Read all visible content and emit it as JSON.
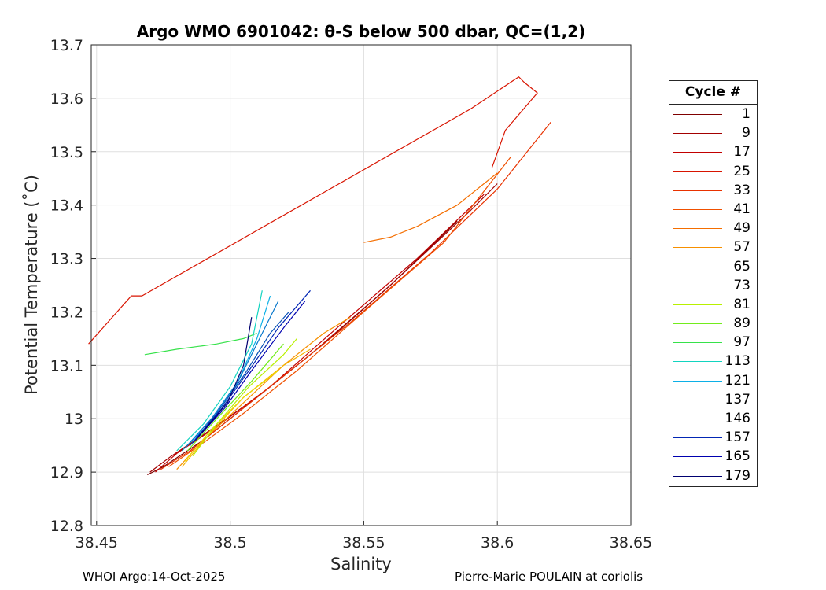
{
  "chart_data": {
    "type": "line",
    "title": "Argo WMO 6901042: θ-S below 500 dbar,  QC=(1,2)",
    "xlabel": "Salinity",
    "ylabel": "Potential Temperature (˚C)",
    "xlim": [
      38.448,
      38.65
    ],
    "ylim": [
      12.8,
      13.7
    ],
    "xticks": [
      "38.45",
      "38.5",
      "38.55",
      "38.6",
      "38.65"
    ],
    "xtick_values": [
      38.45,
      38.5,
      38.55,
      38.6,
      38.65
    ],
    "yticks": [
      "12.8",
      "12.9",
      "13",
      "13.1",
      "13.2",
      "13.3",
      "13.4",
      "13.5",
      "13.6",
      "13.7"
    ],
    "ytick_values": [
      12.8,
      12.9,
      13.0,
      13.1,
      13.2,
      13.3,
      13.4,
      13.5,
      13.6,
      13.7
    ],
    "grid": true,
    "legend_title": "Cycle #",
    "legend_position": "outside-right",
    "series": [
      {
        "name": "1",
        "color": "#7f0000",
        "x": [
          38.469,
          38.475,
          38.49,
          38.51,
          38.535,
          38.56,
          38.585
        ],
        "y": [
          12.895,
          12.91,
          12.96,
          13.04,
          13.14,
          13.25,
          13.37
        ]
      },
      {
        "name": "9",
        "color": "#a30000",
        "x": [
          38.47,
          38.478,
          38.49,
          38.51,
          38.53,
          38.56,
          38.59,
          38.6
        ],
        "y": [
          12.9,
          12.93,
          12.97,
          13.04,
          13.12,
          13.25,
          13.39,
          13.44
        ]
      },
      {
        "name": "17",
        "color": "#c20000",
        "x": [
          38.472,
          38.48,
          38.495,
          38.515,
          38.54,
          38.57,
          38.595
        ],
        "y": [
          12.9,
          12.935,
          12.985,
          13.06,
          13.17,
          13.3,
          13.42
        ]
      },
      {
        "name": "25",
        "color": "#d81400",
        "x": [
          38.447,
          38.463,
          38.467,
          38.59,
          38.608,
          38.61,
          38.615,
          38.603,
          38.598
        ],
        "y": [
          13.14,
          13.23,
          13.23,
          13.58,
          13.64,
          13.63,
          13.61,
          13.54,
          13.47
        ]
      },
      {
        "name": "33",
        "color": "#e83200",
        "x": [
          38.474,
          38.485,
          38.5,
          38.52,
          38.545,
          38.575,
          38.6,
          38.62
        ],
        "y": [
          12.905,
          12.94,
          13.0,
          13.08,
          13.18,
          13.31,
          13.43,
          13.555
        ]
      },
      {
        "name": "41",
        "color": "#f05000",
        "x": [
          38.477,
          38.49,
          38.505,
          38.525,
          38.55,
          38.58,
          38.605
        ],
        "y": [
          12.91,
          12.955,
          13.01,
          13.09,
          13.2,
          13.33,
          13.49
        ]
      },
      {
        "name": "49",
        "color": "#f46e00",
        "x": [
          38.55,
          38.56,
          38.57,
          38.585,
          38.6
        ],
        "y": [
          13.33,
          13.34,
          13.36,
          13.4,
          13.46
        ]
      },
      {
        "name": "57",
        "color": "#f79000",
        "x": [
          38.48,
          38.49,
          38.505,
          38.52,
          38.535,
          38.545
        ],
        "y": [
          12.905,
          12.96,
          13.03,
          13.1,
          13.16,
          13.19
        ]
      },
      {
        "name": "65",
        "color": "#f5b400",
        "x": [
          38.482,
          38.492,
          38.505,
          38.52,
          38.53
        ],
        "y": [
          12.91,
          12.97,
          13.04,
          13.1,
          13.13
        ]
      },
      {
        "name": "73",
        "color": "#eadc00",
        "x": [
          38.483,
          38.493,
          38.505,
          38.518
        ],
        "y": [
          12.92,
          12.98,
          13.04,
          13.09
        ]
      },
      {
        "name": "81",
        "color": "#b8f000",
        "x": [
          38.486,
          38.495,
          38.507,
          38.52,
          38.525
        ],
        "y": [
          12.93,
          12.99,
          13.06,
          13.12,
          13.15
        ]
      },
      {
        "name": "89",
        "color": "#72ec1c",
        "x": [
          38.484,
          38.495,
          38.508,
          38.52
        ],
        "y": [
          12.94,
          13.0,
          13.07,
          13.14
        ]
      },
      {
        "name": "97",
        "color": "#36e24a",
        "x": [
          38.468,
          38.48,
          38.495,
          38.505,
          38.51
        ],
        "y": [
          13.12,
          13.13,
          13.14,
          13.15,
          13.16
        ]
      },
      {
        "name": "113",
        "color": "#12d4c0",
        "x": [
          38.48,
          38.49,
          38.5,
          38.508,
          38.512
        ],
        "y": [
          12.94,
          12.99,
          13.06,
          13.14,
          13.24
        ]
      },
      {
        "name": "121",
        "color": "#0cb0e6",
        "x": [
          38.482,
          38.492,
          38.502,
          38.51,
          38.515
        ],
        "y": [
          12.94,
          12.99,
          13.06,
          13.15,
          13.23
        ]
      },
      {
        "name": "137",
        "color": "#0878cc",
        "x": [
          38.483,
          38.493,
          38.503,
          38.512,
          38.518
        ],
        "y": [
          12.945,
          13.0,
          13.07,
          13.16,
          13.22
        ]
      },
      {
        "name": "146",
        "color": "#0650b6",
        "x": [
          38.485,
          38.495,
          38.505,
          38.515,
          38.522
        ],
        "y": [
          12.95,
          13.01,
          13.08,
          13.16,
          13.2
        ]
      },
      {
        "name": "157",
        "color": "#0226b4",
        "x": [
          38.486,
          38.497,
          38.507,
          38.518,
          38.53
        ],
        "y": [
          12.955,
          13.02,
          13.09,
          13.17,
          13.24
        ]
      },
      {
        "name": "165",
        "color": "#0000b0",
        "x": [
          38.487,
          38.498,
          38.508,
          38.52,
          38.528
        ],
        "y": [
          12.96,
          13.02,
          13.09,
          13.17,
          13.22
        ]
      },
      {
        "name": "179",
        "color": "#000070",
        "x": [
          38.488,
          38.499,
          38.505,
          38.507,
          38.508
        ],
        "y": [
          12.965,
          13.03,
          13.1,
          13.16,
          13.19
        ]
      }
    ]
  },
  "footer": {
    "left": "WHOI Argo:14-Oct-2025",
    "right": "Pierre-Marie POULAIN at coriolis"
  }
}
